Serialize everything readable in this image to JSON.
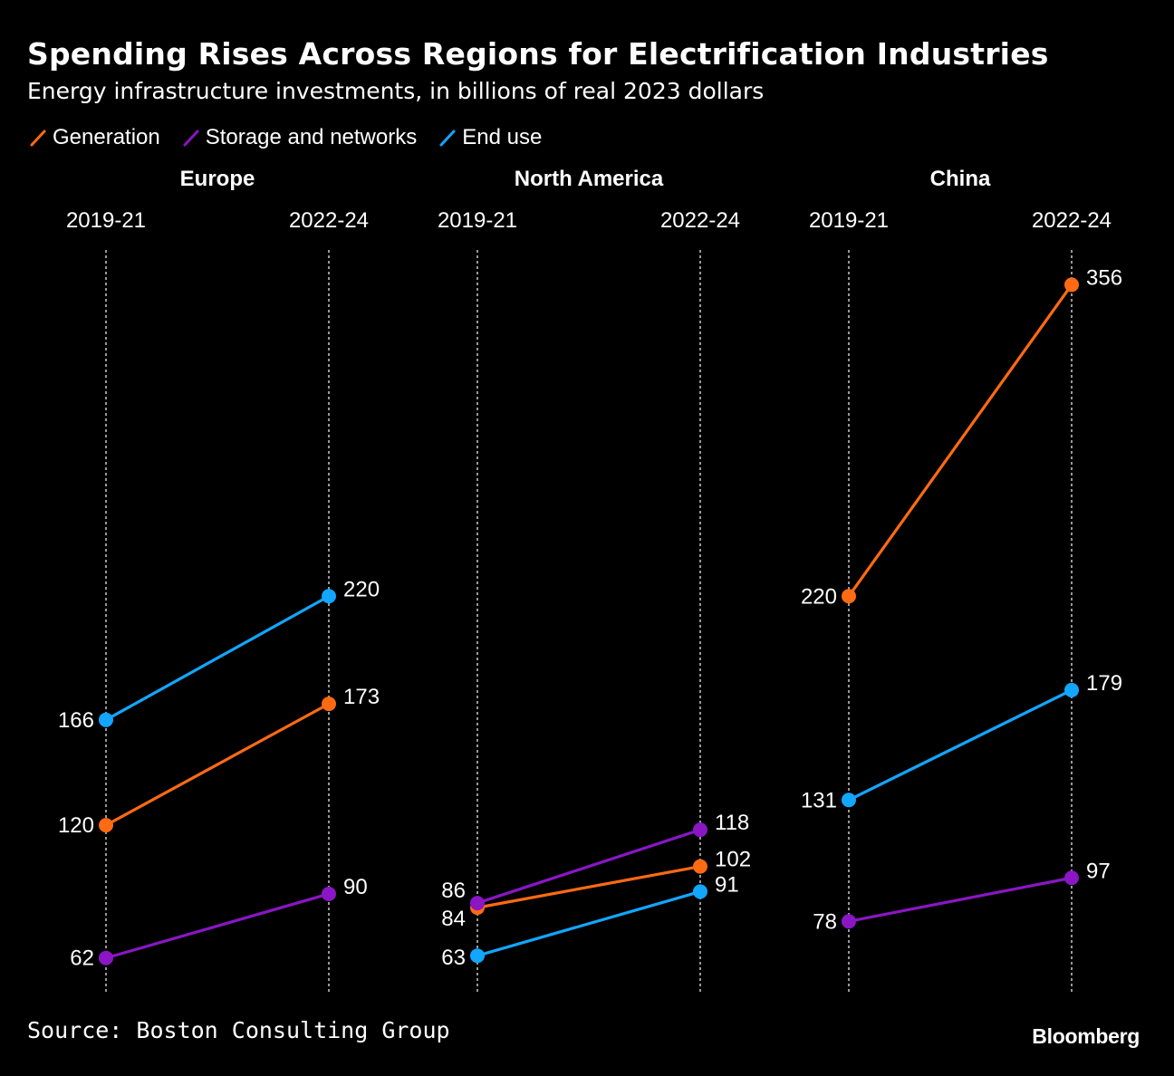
{
  "title": "Spending Rises Across Regions for Electrification Industries",
  "subtitle": "Energy infrastructure investments, in billions of real 2023 dollars",
  "legend": [
    {
      "label": "Generation",
      "color": "#ff6a13"
    },
    {
      "label": "Storage and networks",
      "color": "#8a16c4"
    },
    {
      "label": "End use",
      "color": "#12a6ff"
    }
  ],
  "source": "Source: Boston Consulting Group",
  "brand": "Bloomberg",
  "chart_data": {
    "type": "line",
    "subtype": "slope",
    "x": [
      "2019-21",
      "2022-24"
    ],
    "ylim": [
      50,
      370
    ],
    "grid": "dotted vertical lines at each period",
    "panels": [
      {
        "title": "Europe",
        "series": [
          {
            "name": "Generation",
            "values": [
              120,
              173
            ]
          },
          {
            "name": "Storage and networks",
            "values": [
              62,
              90
            ]
          },
          {
            "name": "End use",
            "values": [
              166,
              220
            ]
          }
        ]
      },
      {
        "title": "North America",
        "series": [
          {
            "name": "Generation",
            "values": [
              84,
              102
            ]
          },
          {
            "name": "Storage and networks",
            "values": [
              86,
              118
            ]
          },
          {
            "name": "End use",
            "values": [
              63,
              91
            ]
          }
        ]
      },
      {
        "title": "China",
        "series": [
          {
            "name": "Generation",
            "values": [
              220,
              356
            ]
          },
          {
            "name": "Storage and networks",
            "values": [
              78,
              97
            ]
          },
          {
            "name": "End use",
            "values": [
              131,
              179
            ]
          }
        ]
      }
    ]
  }
}
